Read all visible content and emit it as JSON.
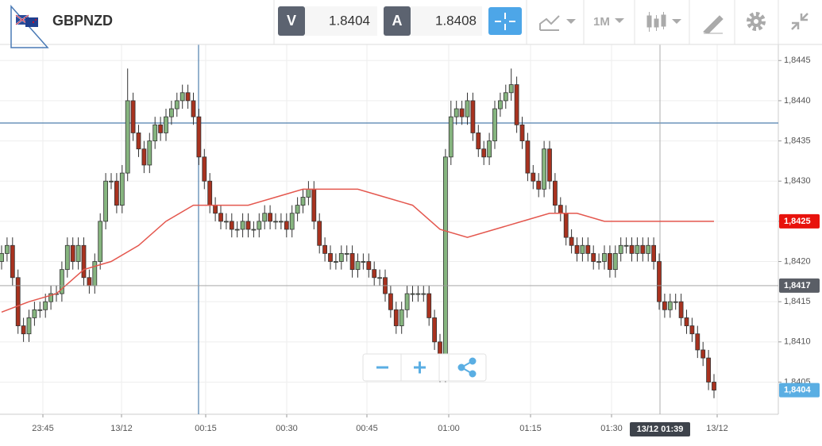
{
  "toolbar": {
    "symbol": "GBPNZD",
    "bid_label": "V",
    "bid": 1.8404,
    "ask_label": "A",
    "ask": 1.8408,
    "timeframe": "1M"
  },
  "chart_data": {
    "type": "candlestick",
    "ylim": [
      1.8401,
      1.8447
    ],
    "yticks": [
      {
        "value": 1.8445,
        "label": "1,8445"
      },
      {
        "value": 1.844,
        "label": "1,8440"
      },
      {
        "value": 1.8435,
        "label": "1,8435"
      },
      {
        "value": 1.843,
        "label": "1,8430"
      },
      {
        "value": 1.8425,
        "label": "1,8425"
      },
      {
        "value": 1.842,
        "label": "1,8420"
      },
      {
        "value": 1.8415,
        "label": "1,8415"
      },
      {
        "value": 1.841,
        "label": "1,8410"
      },
      {
        "value": 1.8405,
        "label": "1,8405"
      }
    ],
    "x_labels": [
      "23:45",
      "13/12",
      "00:15",
      "00:30",
      "00:45",
      "01:00",
      "01:15",
      "01:30",
      "13/12"
    ],
    "up_color": "#86b57f",
    "down_color": "#a8321f",
    "ohlc": [
      [
        1.842,
        1.8422,
        1.8419,
        1.8421
      ],
      [
        1.8421,
        1.8423,
        1.842,
        1.8422
      ],
      [
        1.8422,
        1.8423,
        1.8417,
        1.8418
      ],
      [
        1.8418,
        1.8419,
        1.8411,
        1.8412
      ],
      [
        1.8412,
        1.8413,
        1.841,
        1.8411
      ],
      [
        1.8411,
        1.8414,
        1.841,
        1.8413
      ],
      [
        1.8413,
        1.8415,
        1.8412,
        1.8414
      ],
      [
        1.8414,
        1.8415,
        1.8413,
        1.8414
      ],
      [
        1.8414,
        1.8416,
        1.8413,
        1.8415
      ],
      [
        1.8415,
        1.8417,
        1.8414,
        1.8416
      ],
      [
        1.8416,
        1.8417,
        1.8415,
        1.8416
      ],
      [
        1.8416,
        1.842,
        1.8415,
        1.8419
      ],
      [
        1.8419,
        1.8423,
        1.8418,
        1.8422
      ],
      [
        1.8422,
        1.8423,
        1.8419,
        1.842
      ],
      [
        1.842,
        1.8423,
        1.8419,
        1.8422
      ],
      [
        1.8422,
        1.8423,
        1.8417,
        1.8418
      ],
      [
        1.8418,
        1.8419,
        1.8416,
        1.8417
      ],
      [
        1.8417,
        1.8421,
        1.8416,
        1.842
      ],
      [
        1.842,
        1.8426,
        1.8419,
        1.8425
      ],
      [
        1.8425,
        1.8431,
        1.8424,
        1.843
      ],
      [
        1.843,
        1.8431,
        1.8429,
        1.843
      ],
      [
        1.843,
        1.8431,
        1.8426,
        1.8427
      ],
      [
        1.8427,
        1.8432,
        1.8426,
        1.8431
      ],
      [
        1.8431,
        1.8444,
        1.843,
        1.844
      ],
      [
        1.844,
        1.8441,
        1.8435,
        1.8436
      ],
      [
        1.8436,
        1.8437,
        1.8433,
        1.8434
      ],
      [
        1.8434,
        1.8435,
        1.8431,
        1.8432
      ],
      [
        1.8432,
        1.8436,
        1.8431,
        1.8435
      ],
      [
        1.8435,
        1.8438,
        1.8434,
        1.8437
      ],
      [
        1.8437,
        1.8438,
        1.8435,
        1.8436
      ],
      [
        1.8436,
        1.8439,
        1.8435,
        1.8438
      ],
      [
        1.8438,
        1.844,
        1.8437,
        1.8439
      ],
      [
        1.8439,
        1.8441,
        1.8438,
        1.844
      ],
      [
        1.844,
        1.8442,
        1.8439,
        1.8441
      ],
      [
        1.8441,
        1.8442,
        1.8439,
        1.844
      ],
      [
        1.844,
        1.8441,
        1.8437,
        1.8438
      ],
      [
        1.8438,
        1.8439,
        1.8432,
        1.8433
      ],
      [
        1.8433,
        1.8434,
        1.8429,
        1.843
      ],
      [
        1.843,
        1.8431,
        1.8426,
        1.8427
      ],
      [
        1.8427,
        1.8428,
        1.8425,
        1.8426
      ],
      [
        1.8426,
        1.8427,
        1.8424,
        1.8425
      ],
      [
        1.8425,
        1.8426,
        1.8424,
        1.8425
      ],
      [
        1.8425,
        1.8426,
        1.8423,
        1.8424
      ],
      [
        1.8424,
        1.8425,
        1.8423,
        1.8424
      ],
      [
        1.8424,
        1.8426,
        1.8423,
        1.8425
      ],
      [
        1.8425,
        1.8426,
        1.8423,
        1.8424
      ],
      [
        1.8424,
        1.8425,
        1.8423,
        1.8424
      ],
      [
        1.8424,
        1.8426,
        1.8423,
        1.8425
      ],
      [
        1.8425,
        1.8427,
        1.8424,
        1.8426
      ],
      [
        1.8426,
        1.8427,
        1.8424,
        1.8425
      ],
      [
        1.8425,
        1.8426,
        1.8424,
        1.8425
      ],
      [
        1.8425,
        1.8426,
        1.8424,
        1.8425
      ],
      [
        1.8425,
        1.8426,
        1.8423,
        1.8424
      ],
      [
        1.8424,
        1.8427,
        1.8423,
        1.8426
      ],
      [
        1.8426,
        1.8428,
        1.8425,
        1.8427
      ],
      [
        1.8427,
        1.8429,
        1.8426,
        1.8428
      ],
      [
        1.8428,
        1.843,
        1.8427,
        1.8429
      ],
      [
        1.8429,
        1.843,
        1.8424,
        1.8425
      ],
      [
        1.8425,
        1.8426,
        1.8421,
        1.8422
      ],
      [
        1.8422,
        1.8423,
        1.842,
        1.8421
      ],
      [
        1.8421,
        1.8422,
        1.8419,
        1.842
      ],
      [
        1.842,
        1.8421,
        1.8419,
        1.842
      ],
      [
        1.842,
        1.8422,
        1.8419,
        1.8421
      ],
      [
        1.8421,
        1.8422,
        1.842,
        1.8421
      ],
      [
        1.8421,
        1.8422,
        1.8418,
        1.8419
      ],
      [
        1.8419,
        1.8421,
        1.8418,
        1.842
      ],
      [
        1.842,
        1.8421,
        1.8419,
        1.842
      ],
      [
        1.842,
        1.8421,
        1.8418,
        1.8419
      ],
      [
        1.8419,
        1.842,
        1.8417,
        1.8418
      ],
      [
        1.8418,
        1.8419,
        1.8417,
        1.8418
      ],
      [
        1.8418,
        1.8419,
        1.8415,
        1.8416
      ],
      [
        1.8416,
        1.8417,
        1.8413,
        1.8414
      ],
      [
        1.8414,
        1.8415,
        1.8411,
        1.8412
      ],
      [
        1.8412,
        1.8415,
        1.8411,
        1.8414
      ],
      [
        1.8414,
        1.8417,
        1.8413,
        1.8416
      ],
      [
        1.8416,
        1.8417,
        1.8415,
        1.8416
      ],
      [
        1.8416,
        1.8417,
        1.8415,
        1.8416
      ],
      [
        1.8416,
        1.8417,
        1.8415,
        1.8416
      ],
      [
        1.8416,
        1.8417,
        1.8412,
        1.8413
      ],
      [
        1.8413,
        1.8414,
        1.8409,
        1.841
      ],
      [
        1.841,
        1.8411,
        1.8405,
        1.8406
      ],
      [
        1.8406,
        1.8434,
        1.8405,
        1.8433
      ],
      [
        1.8433,
        1.844,
        1.8432,
        1.8438
      ],
      [
        1.8438,
        1.844,
        1.8437,
        1.8439
      ],
      [
        1.8439,
        1.844,
        1.8437,
        1.8438
      ],
      [
        1.8438,
        1.8441,
        1.8437,
        1.844
      ],
      [
        1.844,
        1.8441,
        1.8435,
        1.8436
      ],
      [
        1.8436,
        1.8437,
        1.8433,
        1.8434
      ],
      [
        1.8434,
        1.8435,
        1.8432,
        1.8433
      ],
      [
        1.8433,
        1.8436,
        1.8432,
        1.8435
      ],
      [
        1.8435,
        1.844,
        1.8434,
        1.8439
      ],
      [
        1.8439,
        1.8441,
        1.8438,
        1.844
      ],
      [
        1.844,
        1.8442,
        1.8439,
        1.8441
      ],
      [
        1.8441,
        1.8444,
        1.844,
        1.8442
      ],
      [
        1.8442,
        1.8443,
        1.8436,
        1.8437
      ],
      [
        1.8437,
        1.8438,
        1.8434,
        1.8435
      ],
      [
        1.8435,
        1.8436,
        1.843,
        1.8431
      ],
      [
        1.8431,
        1.8432,
        1.8429,
        1.843
      ],
      [
        1.843,
        1.8431,
        1.8428,
        1.8429
      ],
      [
        1.8429,
        1.8435,
        1.8428,
        1.8434
      ],
      [
        1.8434,
        1.8435,
        1.8429,
        1.843
      ],
      [
        1.843,
        1.8431,
        1.8426,
        1.8427
      ],
      [
        1.8427,
        1.8428,
        1.8425,
        1.8426
      ],
      [
        1.8426,
        1.8427,
        1.8422,
        1.8423
      ],
      [
        1.8423,
        1.8424,
        1.8421,
        1.8422
      ],
      [
        1.8422,
        1.8423,
        1.842,
        1.8421
      ],
      [
        1.8421,
        1.8423,
        1.842,
        1.8422
      ],
      [
        1.8422,
        1.8423,
        1.842,
        1.8421
      ],
      [
        1.8421,
        1.8422,
        1.8419,
        1.842
      ],
      [
        1.842,
        1.8421,
        1.8419,
        1.842
      ],
      [
        1.842,
        1.8422,
        1.8419,
        1.8421
      ],
      [
        1.8421,
        1.8422,
        1.8418,
        1.8419
      ],
      [
        1.8419,
        1.8422,
        1.8418,
        1.8421
      ],
      [
        1.8421,
        1.8423,
        1.842,
        1.8422
      ],
      [
        1.8422,
        1.8423,
        1.8421,
        1.8422
      ],
      [
        1.8422,
        1.8423,
        1.842,
        1.8421
      ],
      [
        1.8421,
        1.8423,
        1.842,
        1.8422
      ],
      [
        1.8422,
        1.8423,
        1.842,
        1.8421
      ],
      [
        1.8421,
        1.8423,
        1.842,
        1.8422
      ],
      [
        1.8422,
        1.8423,
        1.8419,
        1.842
      ],
      [
        1.842,
        1.8421,
        1.8414,
        1.8415
      ],
      [
        1.8415,
        1.8416,
        1.8413,
        1.8414
      ],
      [
        1.8414,
        1.8416,
        1.8413,
        1.8415
      ],
      [
        1.8415,
        1.8416,
        1.8414,
        1.8415
      ],
      [
        1.8415,
        1.8416,
        1.8412,
        1.8413
      ],
      [
        1.8413,
        1.8414,
        1.8411,
        1.8412
      ],
      [
        1.8412,
        1.8413,
        1.841,
        1.8411
      ],
      [
        1.8411,
        1.8412,
        1.8408,
        1.8409
      ],
      [
        1.8409,
        1.841,
        1.8407,
        1.8408
      ],
      [
        1.8408,
        1.8409,
        1.8404,
        1.8405
      ],
      [
        1.8405,
        1.8406,
        1.8403,
        1.8404
      ]
    ],
    "moving_average": {
      "color": "#e4574e",
      "x": [
        0,
        5,
        10,
        15,
        20,
        25,
        30,
        35,
        40,
        45,
        50,
        55,
        60,
        65,
        70,
        75,
        80,
        85,
        90,
        95,
        100,
        105,
        110,
        115,
        120,
        125,
        130
      ],
      "values": [
        1.84137,
        1.8415,
        1.8416,
        1.8419,
        1.842,
        1.8422,
        1.8425,
        1.8427,
        1.8427,
        1.8427,
        1.8428,
        1.8429,
        1.8429,
        1.8429,
        1.8428,
        1.8427,
        1.8424,
        1.8423,
        1.8424,
        1.8425,
        1.8426,
        1.8426,
        1.8425,
        1.8425,
        1.8425,
        1.8425,
        1.8425
      ]
    },
    "price_labels": [
      {
        "value": 1.8425,
        "label": "1,8425",
        "color": "#e8120c"
      },
      {
        "value": 1.8417,
        "label": "1,8417",
        "color": "#5a5e66"
      },
      {
        "value": 1.8404,
        "label": "1,8404",
        "color": "#5aaee3"
      }
    ],
    "crosshair_time": "13/12 01:39"
  }
}
